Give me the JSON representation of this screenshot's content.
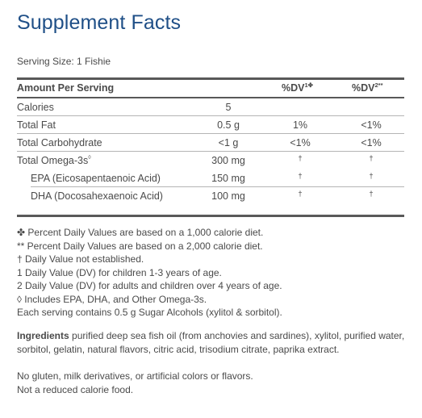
{
  "title": "Supplement Facts",
  "serving_size": "Serving Size: 1 Fishie",
  "header": {
    "amount": "Amount Per Serving",
    "dv1_label": "%DV",
    "dv1_mark": "1✤",
    "dv2_label": "%DV",
    "dv2_mark": "2**"
  },
  "rows": [
    {
      "name": "Calories",
      "amount": "5",
      "dv1": "",
      "dv2": ""
    },
    {
      "name": "Total Fat",
      "amount": "0.5 g",
      "dv1": "1%",
      "dv2": "<1%"
    },
    {
      "name": "Total Carbohydrate",
      "amount": "<1 g",
      "dv1": "<1%",
      "dv2": "<1%"
    },
    {
      "name": "Total Omega-3s",
      "name_mark": "◊",
      "amount": "300 mg",
      "dv1": "†",
      "dv2": "†"
    },
    {
      "name": "EPA (Eicosapentaenoic Acid)",
      "amount": "150 mg",
      "dv1": "†",
      "dv2": "†"
    },
    {
      "name": "DHA (Docosahexaenoic Acid)",
      "amount": "100 mg",
      "dv1": "†",
      "dv2": "†"
    }
  ],
  "notes": [
    "✤ Percent Daily Values are based on a 1,000 calorie diet.",
    "** Percent Daily Values are based on a 2,000 calorie diet.",
    "† Daily Value not established.",
    "1 Daily Value (DV) for children 1-3 years of age.",
    "2 Daily Value (DV) for adults and children over 4 years of age.",
    "◊ Includes EPA, DHA, and Other Omega-3s.",
    "Each serving contains 0.5 g Sugar Alcohols (xylitol & sorbitol)."
  ],
  "ingredients": {
    "label": "Ingredients",
    "text": " purified deep sea fish oil (from anchovies and sardines), xylitol, purified water, sorbitol, gelatin, natural flavors, citric acid, trisodium citrate, paprika extract."
  },
  "extra_lines": [
    "No gluten, milk derivatives, or artificial colors or flavors.",
    "Not a reduced calorie food."
  ]
}
